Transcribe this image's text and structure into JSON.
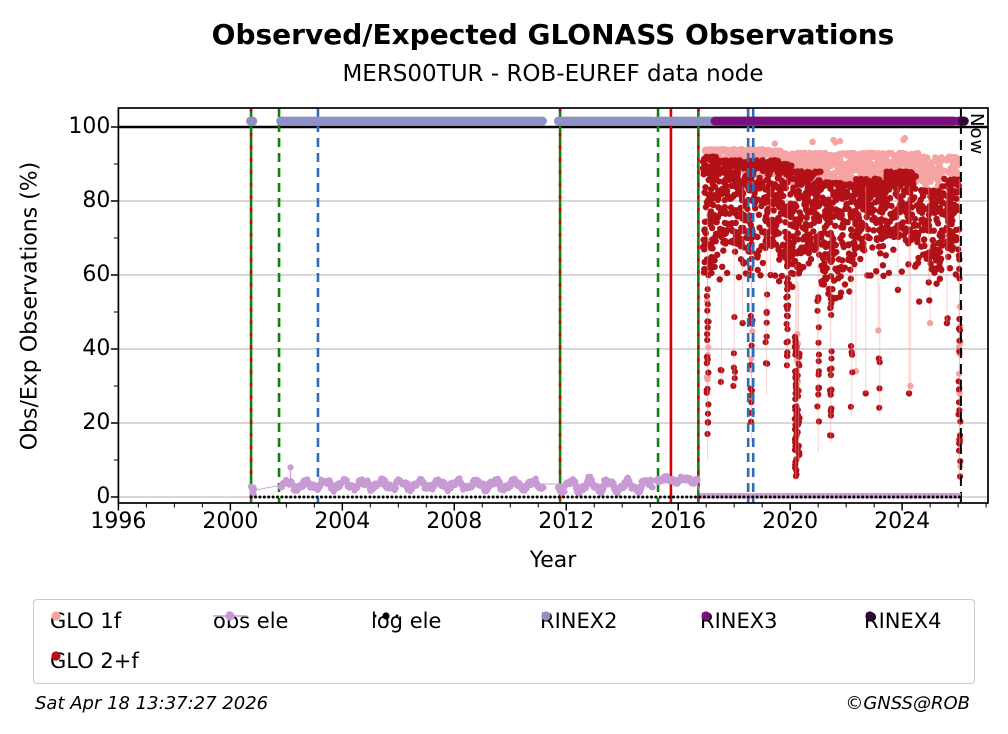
{
  "page": {
    "footer_left": "Sat Apr 18 13:37:27 2026",
    "footer_right": "©GNSS@ROB"
  },
  "chart_data": {
    "type": "scatter",
    "title": "Observed/Expected GLONASS Observations",
    "subtitle": "MERS00TUR - ROB-EUREF data node",
    "xlabel": "Year",
    "ylabel": "Obs/Exp Observations (%)",
    "xlim": [
      1995.95,
      2027.1
    ],
    "ylim": [
      -1.6,
      105.1
    ],
    "xticks": [
      1996,
      2000,
      2004,
      2008,
      2012,
      2016,
      2020,
      2024
    ],
    "x_minor_step_years": 1,
    "yticks": [
      0,
      20,
      40,
      60,
      80,
      100
    ],
    "y_minor_step": 10,
    "grid": {
      "horizontal": true,
      "color": "#b2b2b2"
    },
    "reference_lines": {
      "hline_100": {
        "y": 100,
        "color": "#000000",
        "style": "solid"
      },
      "now": {
        "year": 2026.1,
        "label": "Now",
        "color": "#000000",
        "style": "dashed"
      },
      "events": [
        {
          "year": 2000.74,
          "color": "#108010",
          "style": "solid",
          "overlay_color": "#d60000"
        },
        {
          "year": 2001.74,
          "color": "#108010",
          "style": "dashed"
        },
        {
          "year": 2003.13,
          "color": "#2e6db4",
          "style": "dashed"
        },
        {
          "year": 2011.78,
          "color": "#108010",
          "style": "solid",
          "overlay_color": "#d60000"
        },
        {
          "year": 2015.28,
          "color": "#108010",
          "style": "dashed"
        },
        {
          "year": 2015.74,
          "color": "#d60000",
          "style": "solid"
        },
        {
          "year": 2016.72,
          "color": "#108010",
          "style": "solid",
          "overlay_color": "#d60000"
        },
        {
          "year": 2018.5,
          "color": "#2e6db4",
          "style": "dashed"
        },
        {
          "year": 2018.68,
          "color": "#2e6db4",
          "style": "dashed"
        }
      ]
    },
    "legend": {
      "position": "bottom",
      "items": [
        {
          "label": "GLO 1f",
          "color": "#f5a3a3",
          "marker": "dot"
        },
        {
          "label": "obs ele",
          "color": "#c89bd4",
          "marker": "dot-line"
        },
        {
          "label": "log ele",
          "color": "#000000",
          "marker": "dotted-line"
        },
        {
          "label": "RINEX2",
          "color": "#8f90c5",
          "marker": "dot"
        },
        {
          "label": "RINEX3",
          "color": "#7c0f7e",
          "marker": "dot"
        },
        {
          "label": "RINEX4",
          "color": "#2e0a33",
          "marker": "dot"
        },
        {
          "label": "GLO 2+f",
          "color": "#b11117",
          "marker": "dot"
        }
      ]
    },
    "series": [
      {
        "name": "GLO 1f",
        "color": "#f5a3a3",
        "marker": "dot",
        "seed": 11,
        "band_segments": [
          {
            "t0": 2016.95,
            "t1": 2019.7,
            "lo": 87,
            "hi": 94,
            "n": 300
          },
          {
            "t0": 2019.7,
            "t1": 2020.5,
            "lo": 85,
            "hi": 93,
            "n": 85
          },
          {
            "t0": 2020.5,
            "t1": 2023.0,
            "lo": 84,
            "hi": 93,
            "n": 260
          },
          {
            "t0": 2023.0,
            "t1": 2024.6,
            "lo": 85,
            "hi": 93,
            "n": 165
          },
          {
            "t0": 2024.6,
            "t1": 2026.05,
            "lo": 83,
            "hi": 92,
            "n": 125
          }
        ],
        "streaks": [
          {
            "t": 2017.05,
            "lo": 20,
            "hi": 60,
            "n": 6
          },
          {
            "t": 2018.62,
            "lo": 27,
            "hi": 45,
            "n": 4
          },
          {
            "t": 2020.25,
            "lo": 12,
            "hi": 45,
            "n": 10
          },
          {
            "t": 2026.05,
            "lo": 6,
            "hi": 65,
            "n": 12
          }
        ],
        "outliers": [
          {
            "t": 2019.45,
            "v": 95.5
          },
          {
            "t": 2020.8,
            "v": 96.0
          },
          {
            "t": 2021.55,
            "v": 96.5
          },
          {
            "t": 2021.62,
            "v": 95.8
          },
          {
            "t": 2021.78,
            "v": 96.2
          },
          {
            "t": 2024.05,
            "v": 96.5
          },
          {
            "t": 2024.1,
            "v": 97.0
          },
          {
            "t": 2022.35,
            "v": 34.0
          },
          {
            "t": 2023.15,
            "v": 45.0
          },
          {
            "t": 2024.3,
            "v": 30.0
          },
          {
            "t": 2025.0,
            "v": 47.0
          }
        ]
      },
      {
        "name": "GLO 2+f",
        "color": "#b11117",
        "marker": "dot",
        "seed": 23,
        "band_segments": [
          {
            "t0": 2016.88,
            "t1": 2017.35,
            "lo": 60,
            "hi": 92,
            "n": 100
          },
          {
            "t0": 2017.35,
            "t1": 2019.6,
            "lo": 72,
            "hi": 91,
            "n": 380,
            "tail_lo": 56,
            "tail_frac": 0.22
          },
          {
            "t0": 2019.6,
            "t1": 2020.1,
            "lo": 55,
            "hi": 90,
            "n": 100
          },
          {
            "t0": 2020.1,
            "t1": 2020.55,
            "lo": 60,
            "hi": 88,
            "n": 70
          },
          {
            "t0": 2020.55,
            "t1": 2021.1,
            "lo": 68,
            "hi": 88,
            "n": 95,
            "tail_lo": 58,
            "tail_frac": 0.15
          },
          {
            "t0": 2021.1,
            "t1": 2022.3,
            "lo": 62,
            "hi": 85,
            "n": 185,
            "tail_lo": 48,
            "tail_frac": 0.15
          },
          {
            "t0": 2022.3,
            "t1": 2023.4,
            "lo": 68,
            "hi": 86,
            "n": 165,
            "tail_lo": 55,
            "tail_frac": 0.1
          },
          {
            "t0": 2023.4,
            "t1": 2024.5,
            "lo": 70,
            "hi": 88,
            "n": 165,
            "tail_lo": 58,
            "tail_frac": 0.1
          },
          {
            "t0": 2024.5,
            "t1": 2025.4,
            "lo": 62,
            "hi": 83,
            "n": 115,
            "tail_lo": 50,
            "tail_frac": 0.12
          },
          {
            "t0": 2025.4,
            "t1": 2026.05,
            "lo": 66,
            "hi": 86,
            "n": 95,
            "tail_lo": 45,
            "tail_frac": 0.1
          }
        ],
        "streaks": [
          {
            "t": 2017.05,
            "lo": 10,
            "hi": 60,
            "n": 22
          },
          {
            "t": 2017.55,
            "lo": 30,
            "hi": 40,
            "n": 3
          },
          {
            "t": 2018.0,
            "lo": 30,
            "hi": 55,
            "n": 6
          },
          {
            "t": 2018.62,
            "lo": 15,
            "hi": 50,
            "n": 12
          },
          {
            "t": 2019.15,
            "lo": 28,
            "hi": 55,
            "n": 8
          },
          {
            "t": 2019.9,
            "lo": 35,
            "hi": 70,
            "n": 26
          },
          {
            "t": 2020.2,
            "lo": 5,
            "hi": 45,
            "n": 55
          },
          {
            "t": 2020.3,
            "lo": 10,
            "hi": 40,
            "n": 25
          },
          {
            "t": 2021.0,
            "lo": 12,
            "hi": 55,
            "n": 16
          },
          {
            "t": 2021.45,
            "lo": 15,
            "hi": 55,
            "n": 22
          },
          {
            "t": 2022.2,
            "lo": 22,
            "hi": 45,
            "n": 5
          },
          {
            "t": 2023.2,
            "lo": 22,
            "hi": 40,
            "n": 4
          },
          {
            "t": 2026.05,
            "lo": 5,
            "hi": 70,
            "n": 22
          }
        ],
        "outliers": [
          {
            "t": 2018.3,
            "v": 47
          },
          {
            "t": 2019.3,
            "v": 60
          },
          {
            "t": 2022.7,
            "v": 28
          },
          {
            "t": 2023.85,
            "v": 56
          },
          {
            "t": 2024.25,
            "v": 28
          },
          {
            "t": 2024.95,
            "v": 58
          },
          {
            "t": 2025.6,
            "v": 47
          }
        ]
      },
      {
        "name": "obs ele",
        "color": "#c89bd4",
        "marker": "dot-line",
        "seed": 31,
        "line_segments": [
          {
            "type": "blob",
            "t0": 2000.72,
            "t1": 2000.88,
            "lo": 0.5,
            "hi": 3.0,
            "n": 8
          },
          {
            "type": "wiggle",
            "t0": 2001.8,
            "t1": 2011.15,
            "lo": 2.0,
            "hi": 4.6,
            "n": 330
          },
          {
            "type": "wiggle",
            "t0": 2011.7,
            "t1": 2015.05,
            "lo": 1.2,
            "hi": 5.0,
            "n": 120
          },
          {
            "type": "wiggle",
            "t0": 2015.2,
            "t1": 2016.65,
            "lo": 4.0,
            "hi": 5.2,
            "n": 60
          },
          {
            "type": "flat",
            "t0": 2016.8,
            "t1": 2026.1,
            "v": 0.3
          }
        ],
        "spike": {
          "t": 2002.15,
          "v": 8,
          "base": 3.8
        },
        "connectors": [
          [
            2000.85,
            1.8,
            2001.8,
            3.2
          ],
          [
            2011.15,
            3.5,
            2011.7,
            3.5
          ],
          [
            2015.05,
            4.5,
            2015.2,
            4.6
          ],
          [
            2016.65,
            4.5,
            2016.8,
            0.3
          ]
        ]
      },
      {
        "name": "log ele",
        "color": "#000000",
        "marker": "dotted-line",
        "y": 0,
        "t0": 2000.74,
        "t1": 2026.1
      },
      {
        "name": "RINEX2",
        "color": "#8f90c5",
        "marker": "band",
        "y": 101.6,
        "segments": [
          [
            2000.72,
            2000.8
          ],
          [
            2001.8,
            2011.15
          ],
          [
            2011.72,
            2015.05
          ],
          [
            2015.2,
            2016.65
          ],
          [
            2016.72,
            2017.3
          ]
        ]
      },
      {
        "name": "RINEX3",
        "color": "#7c0f7e",
        "marker": "band",
        "y": 101.6,
        "segments": [
          [
            2017.32,
            2025.85
          ],
          [
            2026.0,
            2026.18
          ]
        ]
      },
      {
        "name": "RINEX4",
        "color": "#2e0a33",
        "marker": "band",
        "y": 101.6,
        "segments": [
          [
            2026.16,
            2026.22
          ]
        ]
      }
    ]
  }
}
